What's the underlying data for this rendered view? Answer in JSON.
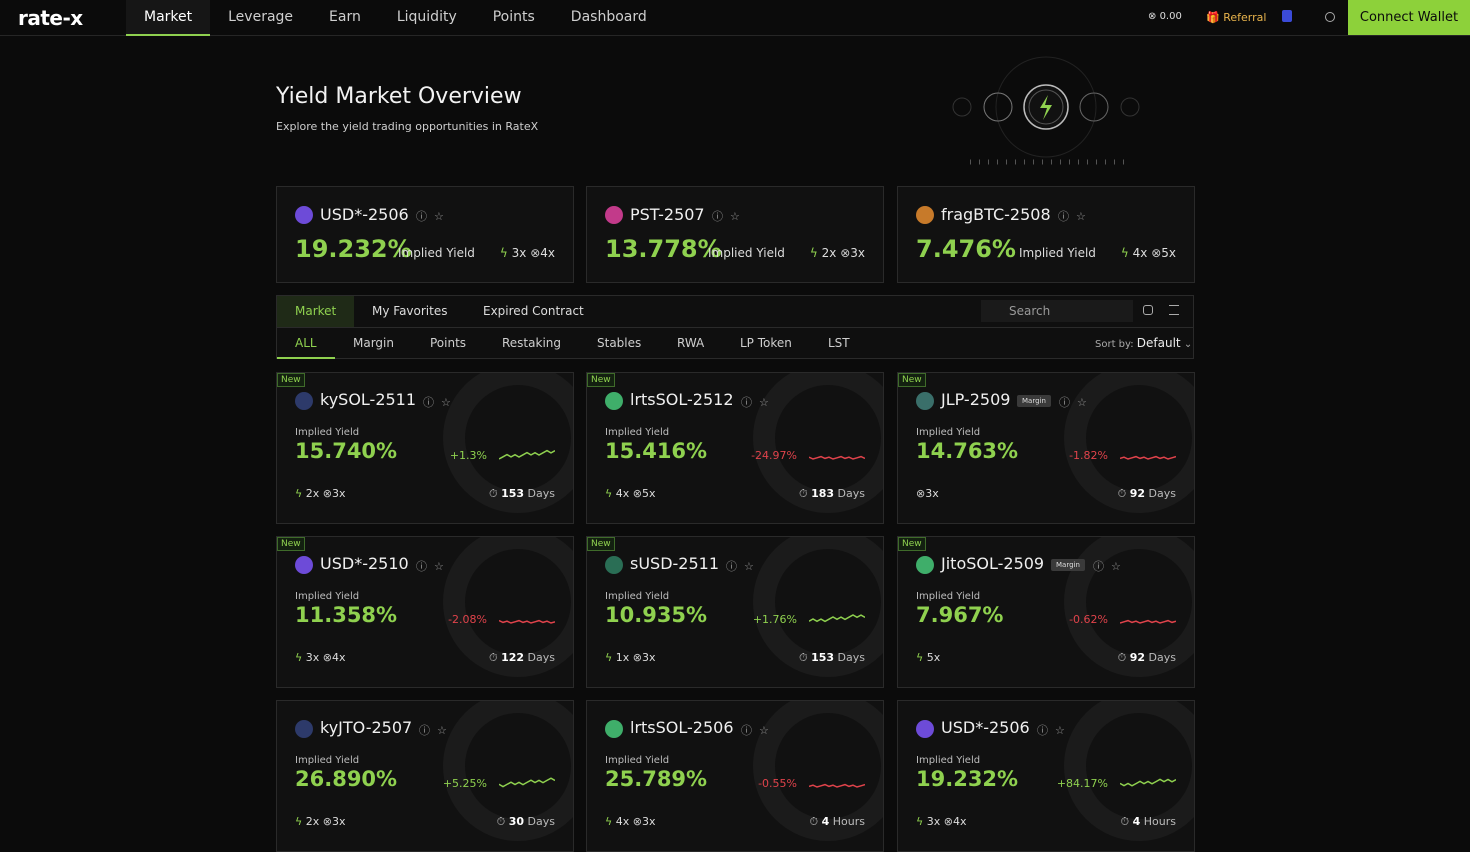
{
  "nav": {
    "logo": "rate-x",
    "items": [
      "Market",
      "Leverage",
      "Earn",
      "Liquidity",
      "Points",
      "Dashboard"
    ],
    "balance": "0.00",
    "referral": "Referral",
    "connect": "Connect Wallet"
  },
  "hero": {
    "title": "Yield Market Overview",
    "subtitle": "Explore the yield trading opportunities in RateX"
  },
  "featured": [
    {
      "name": "USD*-2506",
      "yield": "19.232%",
      "label": "Implied Yield",
      "boost": "3x",
      "leverage": "4x"
    },
    {
      "name": "PST-2507",
      "yield": "13.778%",
      "label": "Implied Yield",
      "boost": "2x",
      "leverage": "3x"
    },
    {
      "name": "fragBTC-2508",
      "yield": "7.476%",
      "label": "Implied Yield",
      "boost": "4x",
      "leverage": "5x"
    }
  ],
  "tabs": [
    "Market",
    "My Favorites",
    "Expired Contract"
  ],
  "search": "Search",
  "filters": [
    "ALL",
    "Margin",
    "Points",
    "Restaking",
    "Stables",
    "RWA",
    "LP Token",
    "LST"
  ],
  "sort": {
    "label": "Sort by:",
    "value": "Default"
  },
  "markets": [
    {
      "badge": "New",
      "name": "kySOL-2511",
      "label": "Implied Yield",
      "yield": "15.740%",
      "change": "+1.3%",
      "boost": "2x",
      "leverage": "3x",
      "term_value": "153",
      "term_unit": "Days"
    },
    {
      "badge": "New",
      "name": "lrtsSOL-2512",
      "label": "Implied Yield",
      "yield": "15.416%",
      "change": "-24.97%",
      "boost": "4x",
      "leverage": "5x",
      "term_value": "183",
      "term_unit": "Days"
    },
    {
      "badge": "New",
      "name": "JLP-2509",
      "tag": "Margin",
      "label": "Implied Yield",
      "yield": "14.763%",
      "change": "-1.82%",
      "leverage": "3x",
      "term_value": "92",
      "term_unit": "Days"
    },
    {
      "badge": "New",
      "name": "USD*-2510",
      "label": "Implied Yield",
      "yield": "11.358%",
      "change": "-2.08%",
      "boost": "3x",
      "leverage": "4x",
      "term_value": "122",
      "term_unit": "Days"
    },
    {
      "badge": "New",
      "name": "sUSD-2511",
      "label": "Implied Yield",
      "yield": "10.935%",
      "change": "+1.76%",
      "boost": "1x",
      "leverage": "3x",
      "term_value": "153",
      "term_unit": "Days"
    },
    {
      "badge": "New",
      "name": "JitoSOL-2509",
      "tag": "Margin",
      "label": "Implied Yield",
      "yield": "7.967%",
      "change": "-0.62%",
      "boost": "5x",
      "term_value": "92",
      "term_unit": "Days"
    },
    {
      "name": "kyJTO-2507",
      "label": "Implied Yield",
      "yield": "26.890%",
      "change": "+5.25%",
      "boost": "2x",
      "leverage": "3x",
      "term_value": "30",
      "term_unit": "Days"
    },
    {
      "name": "lrtsSOL-2506",
      "label": "Implied Yield",
      "yield": "25.789%",
      "change": "-0.55%",
      "boost": "4x",
      "leverage": "3x",
      "term_value": "4",
      "term_unit": "Hours"
    },
    {
      "name": "USD*-2506",
      "label": "Implied Yield",
      "yield": "19.232%",
      "change": "+84.17%",
      "boost": "3x",
      "leverage": "4x",
      "term_value": "4",
      "term_unit": "Hours"
    }
  ]
}
